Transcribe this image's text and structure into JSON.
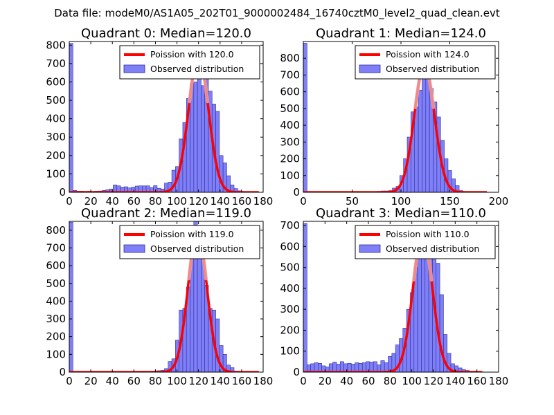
{
  "suptitle": "Data file: modeM0/AS1A05_202T01_9000002484_16740cztM0_level2_quad_clean.evt",
  "chart_data": [
    {
      "type": "bar",
      "title": "Quadrant 0: Median=120.0",
      "median": 120.0,
      "xlim": [
        0,
        180
      ],
      "ylim": [
        0,
        820
      ],
      "xticks": [
        0,
        20,
        40,
        60,
        80,
        100,
        120,
        140,
        160,
        180
      ],
      "yticks": [
        0,
        100,
        200,
        300,
        400,
        500,
        600,
        700,
        800
      ],
      "legend": {
        "placement": "top-right",
        "fit_label": "Poission with 120.0",
        "hist_label": "Observed distribution"
      },
      "bin_width": 3.4,
      "bins": [
        [
          0,
          810
        ],
        [
          3.4,
          10
        ],
        [
          6.8,
          6
        ],
        [
          10.2,
          6
        ],
        [
          13.6,
          5
        ],
        [
          17,
          6
        ],
        [
          20.4,
          5
        ],
        [
          23.8,
          6
        ],
        [
          27.2,
          7
        ],
        [
          30.6,
          10
        ],
        [
          34,
          14
        ],
        [
          37.4,
          18
        ],
        [
          40.8,
          40
        ],
        [
          44.2,
          35
        ],
        [
          47.6,
          28
        ],
        [
          51,
          30
        ],
        [
          54.4,
          24
        ],
        [
          57.8,
          28
        ],
        [
          61.2,
          34
        ],
        [
          64.6,
          35
        ],
        [
          68,
          35
        ],
        [
          71.4,
          35
        ],
        [
          74.8,
          25
        ],
        [
          78.2,
          36
        ],
        [
          81.6,
          22
        ],
        [
          85,
          18
        ],
        [
          88.4,
          50
        ],
        [
          91.8,
          55
        ],
        [
          95.2,
          120
        ],
        [
          98.6,
          140
        ],
        [
          102,
          290
        ],
        [
          105.4,
          380
        ],
        [
          108.8,
          510
        ],
        [
          112.2,
          590
        ],
        [
          115.6,
          600
        ],
        [
          119,
          760
        ],
        [
          122.4,
          580
        ],
        [
          125.8,
          630
        ],
        [
          129.2,
          550
        ],
        [
          132.6,
          480
        ],
        [
          136,
          440
        ],
        [
          139.4,
          200
        ],
        [
          142.8,
          160
        ],
        [
          146.2,
          90
        ],
        [
          149.6,
          40
        ],
        [
          153,
          20
        ],
        [
          156.4,
          8
        ]
      ],
      "fit": {
        "peak": 740,
        "sigma": 9.3,
        "range": [
          0,
          176
        ]
      }
    },
    {
      "type": "bar",
      "title": "Quadrant 1: Median=124.0",
      "median": 124.0,
      "xlim": [
        0,
        200
      ],
      "ylim": [
        0,
        900
      ],
      "xticks": [
        0,
        50,
        100,
        150,
        200
      ],
      "yticks": [
        0,
        100,
        200,
        300,
        400,
        500,
        600,
        700,
        800
      ],
      "legend": {
        "placement": "top-right",
        "fit_label": "Poission with 124.0",
        "hist_label": "Observed distribution"
      },
      "bin_width": 3.8,
      "bins": [
        [
          0,
          890
        ],
        [
          3.8,
          3
        ],
        [
          7.6,
          2
        ],
        [
          11.4,
          2
        ],
        [
          15.2,
          2
        ],
        [
          19,
          2
        ],
        [
          22.8,
          2
        ],
        [
          26.6,
          2
        ],
        [
          30.4,
          2
        ],
        [
          34.2,
          2
        ],
        [
          38,
          2
        ],
        [
          41.8,
          2
        ],
        [
          45.6,
          2
        ],
        [
          49.4,
          2
        ],
        [
          53.2,
          2
        ],
        [
          57,
          2
        ],
        [
          60.8,
          2
        ],
        [
          64.6,
          3
        ],
        [
          68.4,
          3
        ],
        [
          72.2,
          5
        ],
        [
          76,
          6
        ],
        [
          79.8,
          8
        ],
        [
          83.6,
          8
        ],
        [
          87.4,
          10
        ],
        [
          91.2,
          25
        ],
        [
          95,
          35
        ],
        [
          98.8,
          100
        ],
        [
          102.6,
          200
        ],
        [
          106.4,
          330
        ],
        [
          110.2,
          480
        ],
        [
          114,
          510
        ],
        [
          117.8,
          610
        ],
        [
          121.6,
          780
        ],
        [
          125.4,
          710
        ],
        [
          129.2,
          620
        ],
        [
          133,
          540
        ],
        [
          136.8,
          450
        ],
        [
          140.6,
          310
        ],
        [
          144.4,
          200
        ],
        [
          148.2,
          130
        ],
        [
          152,
          80
        ],
        [
          155.8,
          40
        ],
        [
          159.6,
          10
        ],
        [
          163.4,
          4
        ]
      ],
      "fit": {
        "peak": 760,
        "sigma": 10.3,
        "range": [
          0,
          188
        ]
      }
    },
    {
      "type": "bar",
      "title": "Quadrant 2: Median=119.0",
      "median": 119.0,
      "xlim": [
        0,
        180
      ],
      "ylim": [
        0,
        850
      ],
      "xticks": [
        0,
        20,
        40,
        60,
        80,
        100,
        120,
        140,
        160,
        180
      ],
      "yticks": [
        0,
        100,
        200,
        300,
        400,
        500,
        600,
        700,
        800
      ],
      "legend": {
        "placement": "top-right",
        "fit_label": "Poission with 119.0",
        "hist_label": "Observed distribution"
      },
      "bin_width": 3.4,
      "bins": [
        [
          0,
          845
        ],
        [
          3.4,
          4
        ],
        [
          6.8,
          3
        ],
        [
          10.2,
          3
        ],
        [
          13.6,
          3
        ],
        [
          17,
          3
        ],
        [
          20.4,
          3
        ],
        [
          23.8,
          3
        ],
        [
          27.2,
          3
        ],
        [
          30.6,
          3
        ],
        [
          34,
          3
        ],
        [
          37.4,
          3
        ],
        [
          40.8,
          3
        ],
        [
          44.2,
          3
        ],
        [
          47.6,
          3
        ],
        [
          51,
          3
        ],
        [
          54.4,
          3
        ],
        [
          57.8,
          3
        ],
        [
          61.2,
          4
        ],
        [
          64.6,
          5
        ],
        [
          68,
          5
        ],
        [
          71.4,
          4
        ],
        [
          74.8,
          5
        ],
        [
          78.2,
          6
        ],
        [
          81.6,
          8
        ],
        [
          85,
          10
        ],
        [
          88.4,
          20
        ],
        [
          91.8,
          60
        ],
        [
          95.2,
          75
        ],
        [
          98.6,
          180
        ],
        [
          102,
          350
        ],
        [
          105.4,
          360
        ],
        [
          108.8,
          480
        ],
        [
          112.2,
          760
        ],
        [
          115.6,
          860
        ],
        [
          119,
          640
        ],
        [
          122.4,
          700
        ],
        [
          125.8,
          490
        ],
        [
          129.2,
          360
        ],
        [
          132.6,
          350
        ],
        [
          136,
          300
        ],
        [
          139.4,
          150
        ],
        [
          142.8,
          100
        ],
        [
          146.2,
          40
        ],
        [
          149.6,
          25
        ],
        [
          153,
          5
        ]
      ],
      "fit": {
        "peak": 790,
        "sigma": 8.8,
        "range": [
          0,
          176
        ]
      }
    },
    {
      "type": "bar",
      "title": "Quadrant 3: Median=110.0",
      "median": 110.0,
      "xlim": [
        0,
        180
      ],
      "ylim": [
        0,
        720
      ],
      "xticks": [
        0,
        20,
        40,
        60,
        80,
        100,
        120,
        140,
        160,
        180
      ],
      "yticks": [
        0,
        100,
        200,
        300,
        400,
        500,
        600,
        700
      ],
      "legend": {
        "placement": "top-right",
        "fit_label": "Poission with 110.0",
        "hist_label": "Observed distribution"
      },
      "bin_width": 3.4,
      "bins": [
        [
          0,
          710
        ],
        [
          3.4,
          35
        ],
        [
          6.8,
          40
        ],
        [
          10.2,
          45
        ],
        [
          13.6,
          42
        ],
        [
          17,
          30
        ],
        [
          20.4,
          25
        ],
        [
          23.8,
          40
        ],
        [
          27.2,
          48
        ],
        [
          30.6,
          38
        ],
        [
          34,
          50
        ],
        [
          37.4,
          40
        ],
        [
          40.8,
          42
        ],
        [
          44.2,
          38
        ],
        [
          47.6,
          45
        ],
        [
          51,
          42
        ],
        [
          54.4,
          45
        ],
        [
          57.8,
          50
        ],
        [
          61.2,
          48
        ],
        [
          64.6,
          50
        ],
        [
          68,
          35
        ],
        [
          71.4,
          55
        ],
        [
          74.8,
          45
        ],
        [
          78.2,
          75
        ],
        [
          81.6,
          90
        ],
        [
          85,
          130
        ],
        [
          88.4,
          160
        ],
        [
          91.8,
          210
        ],
        [
          95.2,
          300
        ],
        [
          98.6,
          380
        ],
        [
          102,
          500
        ],
        [
          105.4,
          600
        ],
        [
          108.8,
          680
        ],
        [
          112.2,
          600
        ],
        [
          115.6,
          680
        ],
        [
          119,
          590
        ],
        [
          122.4,
          520
        ],
        [
          125.8,
          370
        ],
        [
          129.2,
          180
        ],
        [
          132.6,
          90
        ],
        [
          136,
          40
        ],
        [
          139.4,
          30
        ],
        [
          142.8,
          20
        ],
        [
          146.2,
          12
        ],
        [
          149.6,
          8
        ]
      ],
      "fit": {
        "peak": 660,
        "sigma": 9.0,
        "range": [
          0,
          165
        ]
      }
    }
  ],
  "colors": {
    "bar_fill": "#7f7ff7",
    "bar_edge": "#2c2c9c",
    "fit_line": "#ff0000",
    "fit_highlight": "#f0a0a0"
  }
}
